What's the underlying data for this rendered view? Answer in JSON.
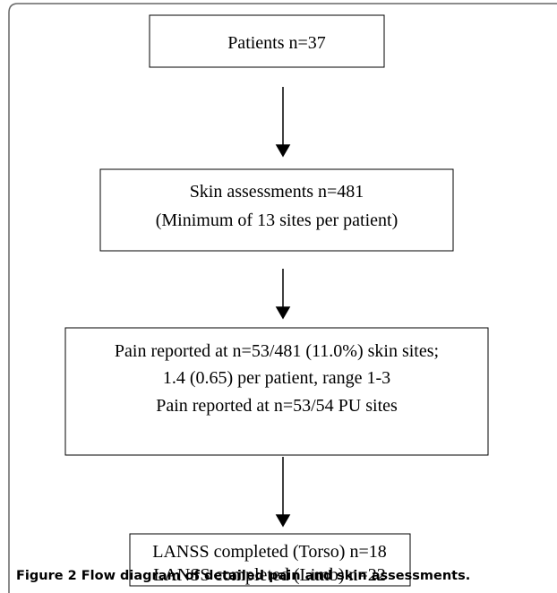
{
  "nodes": [
    {
      "lines": [
        "Patients n=37"
      ]
    },
    {
      "lines": [
        "Skin assessments n=481",
        "(Minimum of 13 sites per patient)"
      ]
    },
    {
      "lines": [
        "Pain reported at n=53/481 (11.0%) skin sites;",
        "1.4 (0.65) per patient, range 1-3",
        "Pain reported at n=53/54 PU sites"
      ]
    },
    {
      "lines": [
        "LANSS completed (Torso) n=18",
        "LANSS completed (Limb) n=22"
      ]
    }
  ],
  "caption": "Figure 2 Flow diagram of detailed pain and skin assessments."
}
